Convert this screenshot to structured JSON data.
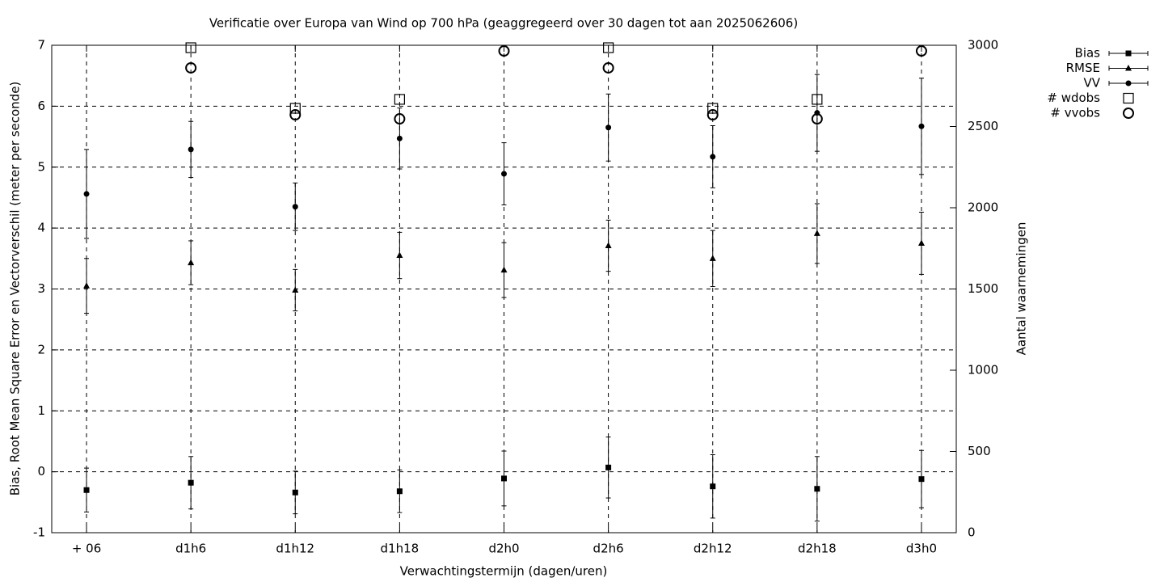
{
  "chart_data": {
    "type": "errorbar",
    "title": "Verificatie over Europa van Wind op 700 hPa (geaggregeerd over 30 dagen tot aan 2025062606)",
    "x_label": "Verwachtingstermijn (dagen/uren)",
    "y_label": "Bias, Root Mean Square Error en Vectorverschil (meter per seconde)",
    "y2_label": "Aantal waarnemingen",
    "categories": [
      "+ 06",
      "d1h6",
      "d1h12",
      "d1h18",
      "d2h0",
      "d2h6",
      "d2h12",
      "d2h18",
      "d3h0"
    ],
    "ylim": [
      -1,
      7
    ],
    "yticks": [
      -1,
      0,
      1,
      2,
      3,
      4,
      5,
      6,
      7
    ],
    "y2lim": [
      0,
      3000
    ],
    "y2ticks": [
      0,
      500,
      1000,
      1500,
      2000,
      2500,
      3000
    ],
    "grid": true,
    "legend": "top-right",
    "series": [
      {
        "name": "Bias",
        "marker": "square",
        "color": "#000000",
        "values": [
          -0.3,
          -0.18,
          -0.34,
          -0.32,
          -0.11,
          0.07,
          -0.24,
          -0.28,
          -0.12
        ],
        "errors": [
          0.36,
          0.43,
          0.35,
          0.35,
          0.45,
          0.5,
          0.52,
          0.53,
          0.47
        ]
      },
      {
        "name": "RMSE",
        "marker": "triangle",
        "color": "#000000",
        "values": [
          3.05,
          3.43,
          2.98,
          3.55,
          3.31,
          3.71,
          3.5,
          3.91,
          3.75
        ],
        "errors": [
          0.45,
          0.36,
          0.34,
          0.38,
          0.45,
          0.42,
          0.46,
          0.49,
          0.51
        ]
      },
      {
        "name": "VV",
        "marker": "circle",
        "color": "#000000",
        "values": [
          4.56,
          5.29,
          4.35,
          5.47,
          4.89,
          5.65,
          5.17,
          5.89,
          5.67
        ],
        "errors": [
          0.73,
          0.46,
          0.39,
          0.5,
          0.51,
          0.55,
          0.51,
          0.63,
          0.79
        ]
      },
      {
        "name": "# wdobs",
        "marker": "open-square",
        "color": "#000000",
        "axis": "y2",
        "values": [
          null,
          2985,
          2612,
          2667,
          null,
          2985,
          2612,
          2667,
          null
        ]
      },
      {
        "name": "# vvobs",
        "marker": "open-circle",
        "color": "#000000",
        "axis": "y2",
        "values": [
          null,
          2861,
          2572,
          2547,
          2965,
          2861,
          2572,
          2547,
          2965
        ]
      }
    ]
  }
}
